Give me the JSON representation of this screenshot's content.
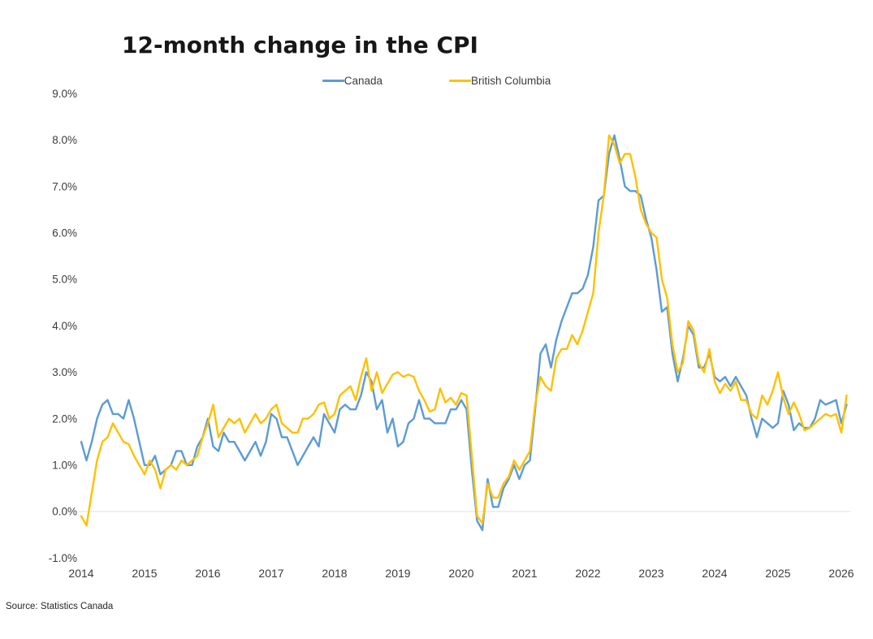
{
  "page": {
    "title": "12-month change in the CPI",
    "source_note": "Source: Statistics Canada"
  },
  "chart_data": {
    "type": "line",
    "title": "12-month change in the CPI",
    "xlabel": "",
    "ylabel": "",
    "x_unit": "month",
    "x_start": "2014-01",
    "x_end": "2026-02",
    "x_tick_labels": [
      "2014",
      "2015",
      "2016",
      "2017",
      "2018",
      "2019",
      "2020",
      "2021",
      "2022",
      "2023",
      "2024",
      "2025",
      "2026"
    ],
    "y_tick_labels": [
      "9.0%",
      "8.0%",
      "7.0%",
      "6.0%",
      "5.0%",
      "4.0%",
      "3.0%",
      "2.0%",
      "1.0%",
      "0.0%",
      "-1.0%"
    ],
    "ylim": [
      -1.0,
      9.0
    ],
    "gridlines": [
      0.0
    ],
    "grid": "zero-line-only",
    "legend_position": "top-center",
    "axis_text_color": "#3c3c3c",
    "gridline_color": "#eaeaea",
    "series": [
      {
        "name": "Canada",
        "color": "#5B9BD5",
        "values": [
          1.5,
          1.1,
          1.5,
          2.0,
          2.3,
          2.4,
          2.1,
          2.1,
          2.0,
          2.4,
          2.0,
          1.5,
          1.0,
          1.0,
          1.2,
          0.8,
          0.9,
          1.0,
          1.3,
          1.3,
          1.0,
          1.0,
          1.4,
          1.6,
          2.0,
          1.4,
          1.3,
          1.7,
          1.5,
          1.5,
          1.3,
          1.1,
          1.3,
          1.5,
          1.2,
          1.5,
          2.1,
          2.0,
          1.6,
          1.6,
          1.3,
          1.0,
          1.2,
          1.4,
          1.6,
          1.4,
          2.1,
          1.9,
          1.7,
          2.2,
          2.3,
          2.2,
          2.2,
          2.5,
          3.0,
          2.8,
          2.2,
          2.4,
          1.7,
          2.0,
          1.4,
          1.5,
          1.9,
          2.0,
          2.4,
          2.0,
          2.0,
          1.9,
          1.9,
          1.9,
          2.2,
          2.2,
          2.4,
          2.2,
          0.9,
          -0.2,
          -0.4,
          0.7,
          0.1,
          0.1,
          0.5,
          0.7,
          1.0,
          0.7,
          1.0,
          1.1,
          2.2,
          3.4,
          3.6,
          3.1,
          3.7,
          4.1,
          4.4,
          4.7,
          4.7,
          4.8,
          5.1,
          5.7,
          6.7,
          6.8,
          7.7,
          8.1,
          7.6,
          7.0,
          6.9,
          6.9,
          6.8,
          6.3,
          5.9,
          5.2,
          4.3,
          4.4,
          3.4,
          2.8,
          3.3,
          4.0,
          3.8,
          3.1,
          3.1,
          3.4,
          2.9,
          2.8,
          2.9,
          2.7,
          2.9,
          2.7,
          2.5,
          2.0,
          1.6,
          2.0,
          1.9,
          1.8,
          1.9,
          2.6,
          2.3,
          1.75,
          1.9,
          1.8,
          1.8,
          2.0,
          2.4,
          2.3,
          2.35,
          2.4,
          1.9,
          2.3
        ]
      },
      {
        "name": "British Columbia",
        "color": "#FFC000",
        "values": [
          -0.1,
          -0.3,
          0.4,
          1.1,
          1.5,
          1.6,
          1.9,
          1.7,
          1.5,
          1.45,
          1.2,
          1.0,
          0.8,
          1.1,
          0.9,
          0.5,
          0.9,
          1.0,
          0.9,
          1.1,
          1.0,
          1.1,
          1.2,
          1.6,
          1.9,
          2.3,
          1.6,
          1.8,
          2.0,
          1.9,
          2.0,
          1.7,
          1.9,
          2.1,
          1.9,
          2.0,
          2.2,
          2.3,
          1.9,
          1.8,
          1.7,
          1.7,
          2.0,
          2.0,
          2.1,
          2.3,
          2.35,
          2.0,
          2.1,
          2.5,
          2.6,
          2.7,
          2.4,
          2.9,
          3.3,
          2.6,
          3.0,
          2.55,
          2.75,
          2.95,
          3.0,
          2.9,
          2.95,
          2.9,
          2.6,
          2.4,
          2.15,
          2.2,
          2.65,
          2.35,
          2.45,
          2.3,
          2.55,
          2.5,
          1.2,
          -0.1,
          -0.25,
          0.6,
          0.3,
          0.3,
          0.6,
          0.75,
          1.1,
          0.9,
          1.1,
          1.3,
          2.3,
          2.9,
          2.7,
          2.6,
          3.3,
          3.5,
          3.5,
          3.8,
          3.6,
          3.9,
          4.3,
          4.7,
          6.0,
          6.8,
          8.1,
          7.9,
          7.5,
          7.7,
          7.7,
          7.2,
          6.5,
          6.2,
          6.0,
          5.9,
          5.0,
          4.6,
          3.6,
          3.0,
          3.2,
          4.1,
          3.9,
          3.2,
          3.0,
          3.5,
          2.8,
          2.55,
          2.75,
          2.6,
          2.8,
          2.4,
          2.4,
          2.1,
          2.0,
          2.5,
          2.3,
          2.6,
          3.0,
          2.45,
          2.1,
          2.35,
          2.1,
          1.75,
          1.8,
          1.9,
          2.0,
          2.1,
          2.05,
          2.1,
          1.7,
          2.5
        ]
      }
    ]
  }
}
